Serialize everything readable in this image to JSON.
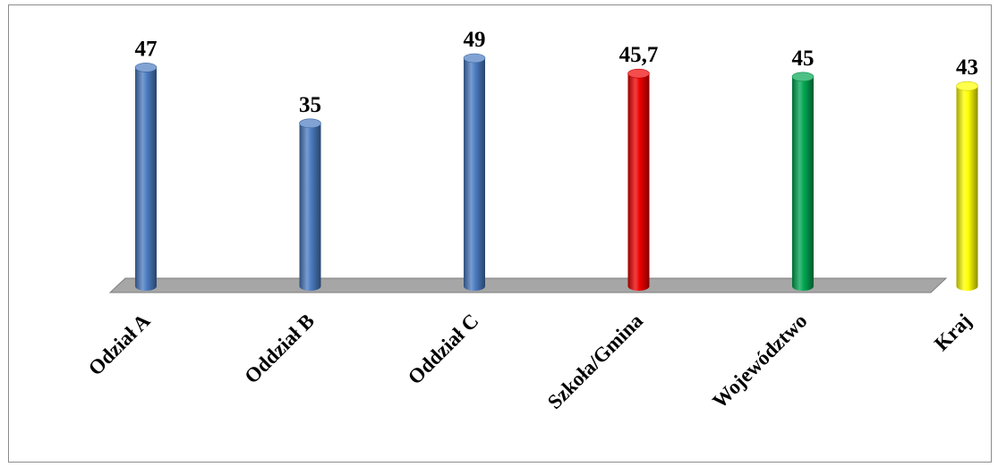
{
  "chart_data": {
    "type": "bar",
    "title": "",
    "xlabel": "",
    "ylabel": "",
    "categories": [
      "Odział A",
      "Oddział B",
      "Oddział C",
      "Szkoła/Gmina",
      "Województwo",
      "Kraj"
    ],
    "values": [
      47,
      35,
      49,
      45.7,
      45,
      43
    ],
    "value_labels": [
      "47",
      "35",
      "49",
      "45,7",
      "45",
      "43"
    ],
    "colors": [
      "#4a7bc1",
      "#4a7bc1",
      "#4a7bc1",
      "#ee0000",
      "#00a651",
      "#ffff00"
    ],
    "ylim": [
      0,
      49
    ],
    "grid": false,
    "legend": "none"
  }
}
